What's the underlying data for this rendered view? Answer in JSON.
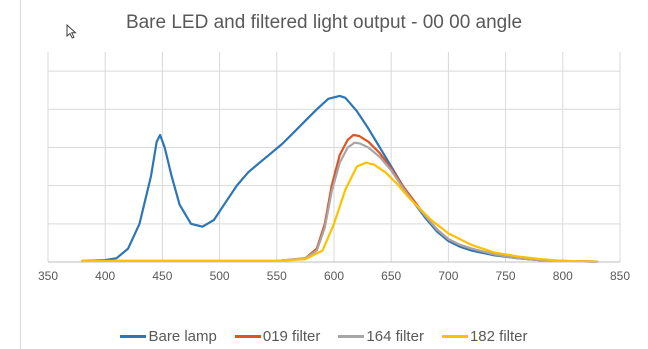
{
  "chart_data": {
    "type": "line",
    "title": "Bare LED and filtered light output - 00 00 angle",
    "xlabel": "",
    "ylabel": "",
    "xlim": [
      350,
      850
    ],
    "ylim": [
      0,
      1.1
    ],
    "x_ticks": [
      350,
      400,
      450,
      500,
      550,
      600,
      650,
      700,
      750,
      800,
      850
    ],
    "y_grid": [
      0.2,
      0.4,
      0.6,
      0.8,
      1.0
    ],
    "y_tick_labels_shown": false,
    "grid": true,
    "legend_position": "bottom",
    "series": [
      {
        "name": "Bare lamp",
        "color": "#2e75b6",
        "x": [
          380,
          400,
          410,
          420,
          430,
          440,
          445,
          448,
          452,
          458,
          465,
          475,
          485,
          495,
          505,
          515,
          525,
          535,
          545,
          555,
          565,
          575,
          585,
          595,
          605,
          610,
          620,
          630,
          640,
          650,
          660,
          670,
          680,
          690,
          700,
          710,
          720,
          740,
          760,
          780,
          800,
          830
        ],
        "y": [
          0.005,
          0.01,
          0.02,
          0.07,
          0.2,
          0.45,
          0.63,
          0.665,
          0.6,
          0.45,
          0.3,
          0.2,
          0.185,
          0.22,
          0.31,
          0.4,
          0.47,
          0.52,
          0.57,
          0.62,
          0.68,
          0.74,
          0.8,
          0.855,
          0.87,
          0.86,
          0.79,
          0.7,
          0.6,
          0.5,
          0.4,
          0.31,
          0.23,
          0.16,
          0.11,
          0.08,
          0.06,
          0.035,
          0.02,
          0.01,
          0.005,
          0.002
        ]
      },
      {
        "name": "019 filter",
        "color": "#e0521f",
        "x": [
          380,
          550,
          575,
          585,
          592,
          598,
          605,
          612,
          617,
          622,
          630,
          640,
          650,
          660,
          670,
          680,
          690,
          700,
          710,
          720,
          740,
          760,
          780,
          800,
          830
        ],
        "y": [
          0.005,
          0.005,
          0.02,
          0.07,
          0.2,
          0.4,
          0.56,
          0.64,
          0.665,
          0.66,
          0.63,
          0.57,
          0.49,
          0.4,
          0.32,
          0.24,
          0.17,
          0.12,
          0.09,
          0.07,
          0.04,
          0.02,
          0.01,
          0.005,
          0.002
        ]
      },
      {
        "name": "164 filter",
        "color": "#a6a6a6",
        "x": [
          380,
          550,
          575,
          585,
          592,
          598,
          605,
          612,
          618,
          623,
          630,
          640,
          650,
          660,
          670,
          680,
          690,
          700,
          710,
          720,
          740,
          760,
          780,
          800,
          830
        ],
        "y": [
          0.005,
          0.005,
          0.02,
          0.06,
          0.18,
          0.37,
          0.52,
          0.6,
          0.625,
          0.62,
          0.6,
          0.55,
          0.48,
          0.39,
          0.31,
          0.24,
          0.17,
          0.12,
          0.09,
          0.07,
          0.04,
          0.02,
          0.01,
          0.005,
          0.002
        ]
      },
      {
        "name": "182 filter",
        "color": "#ffc000",
        "x": [
          380,
          550,
          575,
          590,
          600,
          610,
          620,
          628,
          635,
          645,
          655,
          665,
          675,
          685,
          700,
          720,
          740,
          760,
          780,
          800,
          830
        ],
        "y": [
          0.005,
          0.005,
          0.015,
          0.06,
          0.2,
          0.38,
          0.5,
          0.52,
          0.51,
          0.47,
          0.41,
          0.34,
          0.28,
          0.22,
          0.15,
          0.09,
          0.05,
          0.03,
          0.015,
          0.006,
          0.002
        ]
      }
    ]
  }
}
